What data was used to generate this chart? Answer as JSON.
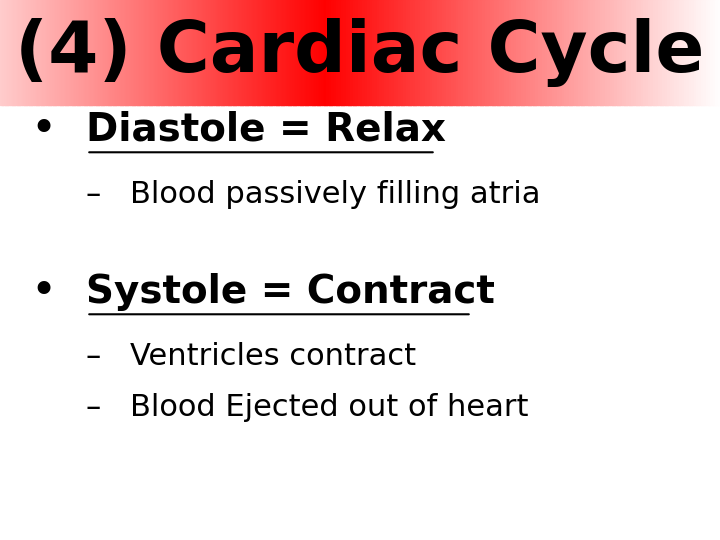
{
  "title": "(4) Cardiac Cycle",
  "title_fontsize": 52,
  "title_color": "#000000",
  "body_bg": "#ffffff",
  "bullet1_header": "Diastole = Relax",
  "bullet1_sub": [
    "Blood passively filling atria"
  ],
  "bullet2_header": "Systole = Contract",
  "bullet2_sub": [
    "Ventricles contract",
    "Blood Ejected out of heart"
  ],
  "bullet_fontsize": 28,
  "sub_fontsize": 22,
  "text_color": "#000000",
  "header_bar_height": 0.195
}
